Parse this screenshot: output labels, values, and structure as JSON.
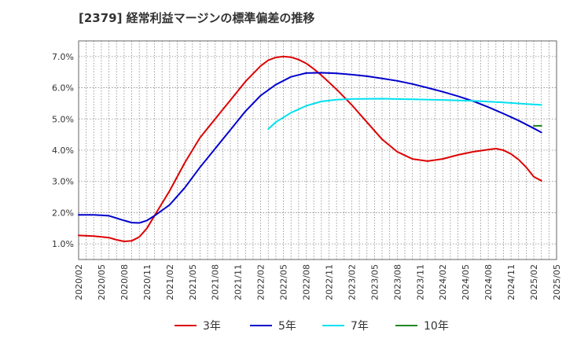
{
  "chart_data": {
    "type": "line",
    "title": "[2379]  経常利益マージンの標準偏差の推移",
    "xlabel": "",
    "ylabel": "",
    "x_ticks": [
      "2020/02",
      "2020/05",
      "2020/08",
      "2020/11",
      "2021/02",
      "2021/05",
      "2021/08",
      "2021/11",
      "2022/02",
      "2022/05",
      "2022/08",
      "2022/11",
      "2023/02",
      "2023/05",
      "2023/08",
      "2023/11",
      "2024/02",
      "2024/05",
      "2024/08",
      "2024/11",
      "2025/02",
      "2025/05"
    ],
    "y_ticks": [
      "1.0%",
      "2.0%",
      "3.0%",
      "4.0%",
      "5.0%",
      "6.0%",
      "7.0%"
    ],
    "ylim": [
      0.5,
      7.5
    ],
    "y_unit": "%",
    "grid": true,
    "legend_position": "bottom",
    "series": [
      {
        "name": "3年",
        "color": "#dd0000",
        "points": [
          [
            "2020/02",
            1.27
          ],
          [
            "2020/04",
            1.25
          ],
          [
            "2020/06",
            1.2
          ],
          [
            "2020/07",
            1.13
          ],
          [
            "2020/08",
            1.08
          ],
          [
            "2020/09",
            1.1
          ],
          [
            "2020/10",
            1.22
          ],
          [
            "2020/11",
            1.5
          ],
          [
            "2020/12",
            1.9
          ],
          [
            "2021/02",
            2.7
          ],
          [
            "2021/04",
            3.6
          ],
          [
            "2021/06",
            4.4
          ],
          [
            "2021/08",
            5.0
          ],
          [
            "2021/10",
            5.6
          ],
          [
            "2021/12",
            6.2
          ],
          [
            "2022/02",
            6.7
          ],
          [
            "2022/03",
            6.88
          ],
          [
            "2022/04",
            6.97
          ],
          [
            "2022/05",
            7.0
          ],
          [
            "2022/06",
            6.98
          ],
          [
            "2022/07",
            6.9
          ],
          [
            "2022/08",
            6.78
          ],
          [
            "2022/09",
            6.6
          ],
          [
            "2022/10",
            6.4
          ],
          [
            "2022/12",
            5.95
          ],
          [
            "2023/02",
            5.45
          ],
          [
            "2023/04",
            4.9
          ],
          [
            "2023/06",
            4.35
          ],
          [
            "2023/08",
            3.95
          ],
          [
            "2023/10",
            3.72
          ],
          [
            "2023/12",
            3.65
          ],
          [
            "2024/02",
            3.72
          ],
          [
            "2024/04",
            3.85
          ],
          [
            "2024/06",
            3.95
          ],
          [
            "2024/08",
            4.02
          ],
          [
            "2024/09",
            4.05
          ],
          [
            "2024/10",
            4.0
          ],
          [
            "2024/11",
            3.88
          ],
          [
            "2024/12",
            3.7
          ],
          [
            "2025/01",
            3.45
          ],
          [
            "2025/02",
            3.15
          ],
          [
            "2025/03",
            3.02
          ]
        ]
      },
      {
        "name": "5年",
        "color": "#0000cc",
        "points": [
          [
            "2020/02",
            1.93
          ],
          [
            "2020/04",
            1.93
          ],
          [
            "2020/06",
            1.9
          ],
          [
            "2020/08",
            1.75
          ],
          [
            "2020/09",
            1.68
          ],
          [
            "2020/10",
            1.67
          ],
          [
            "2020/11",
            1.75
          ],
          [
            "2020/12",
            1.9
          ],
          [
            "2021/02",
            2.25
          ],
          [
            "2021/04",
            2.8
          ],
          [
            "2021/06",
            3.45
          ],
          [
            "2021/08",
            4.05
          ],
          [
            "2021/10",
            4.65
          ],
          [
            "2021/12",
            5.25
          ],
          [
            "2022/02",
            5.75
          ],
          [
            "2022/04",
            6.1
          ],
          [
            "2022/06",
            6.35
          ],
          [
            "2022/08",
            6.47
          ],
          [
            "2022/10",
            6.48
          ],
          [
            "2022/12",
            6.46
          ],
          [
            "2023/02",
            6.42
          ],
          [
            "2023/04",
            6.37
          ],
          [
            "2023/06",
            6.3
          ],
          [
            "2023/08",
            6.22
          ],
          [
            "2023/10",
            6.12
          ],
          [
            "2023/12",
            6.0
          ],
          [
            "2024/02",
            5.87
          ],
          [
            "2024/04",
            5.73
          ],
          [
            "2024/06",
            5.57
          ],
          [
            "2024/08",
            5.38
          ],
          [
            "2024/10",
            5.17
          ],
          [
            "2024/12",
            4.95
          ],
          [
            "2025/02",
            4.7
          ],
          [
            "2025/03",
            4.57
          ]
        ]
      },
      {
        "name": "7年",
        "color": "#00e0f0",
        "points": [
          [
            "2022/03",
            4.68
          ],
          [
            "2022/04",
            4.9
          ],
          [
            "2022/06",
            5.2
          ],
          [
            "2022/08",
            5.42
          ],
          [
            "2022/10",
            5.56
          ],
          [
            "2022/12",
            5.62
          ],
          [
            "2023/02",
            5.64
          ],
          [
            "2023/06",
            5.65
          ],
          [
            "2023/10",
            5.63
          ],
          [
            "2024/02",
            5.61
          ],
          [
            "2024/06",
            5.58
          ],
          [
            "2024/10",
            5.53
          ],
          [
            "2025/01",
            5.48
          ],
          [
            "2025/03",
            5.45
          ]
        ]
      },
      {
        "name": "10年",
        "color": "#228822",
        "points": [
          [
            "2025/02",
            4.78
          ],
          [
            "2025/03",
            4.78
          ]
        ]
      }
    ]
  }
}
